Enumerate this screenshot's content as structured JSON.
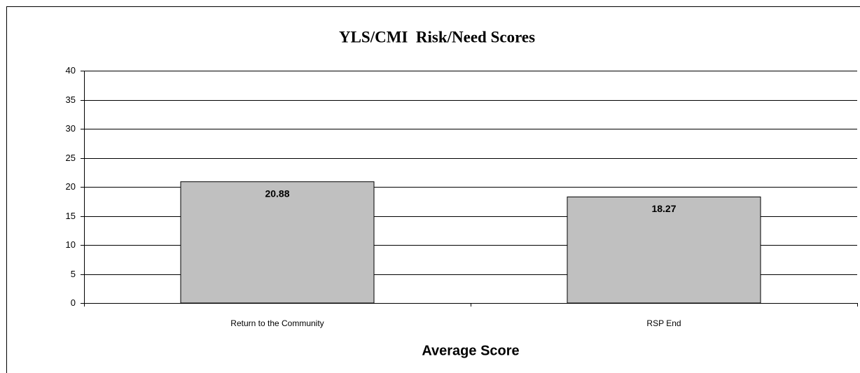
{
  "chart_data": {
    "type": "bar",
    "title": "YLS/CMI  Risk/Need Scores",
    "x_label": "Average Score",
    "categories": [
      "Return to the Community",
      "RSP End"
    ],
    "values": [
      20.88,
      18.27
    ],
    "color": "#c0c0c0",
    "ylim": [
      0,
      40
    ],
    "yticks": [
      0,
      5,
      10,
      15,
      20,
      25,
      30,
      35,
      40
    ],
    "grid": true
  }
}
